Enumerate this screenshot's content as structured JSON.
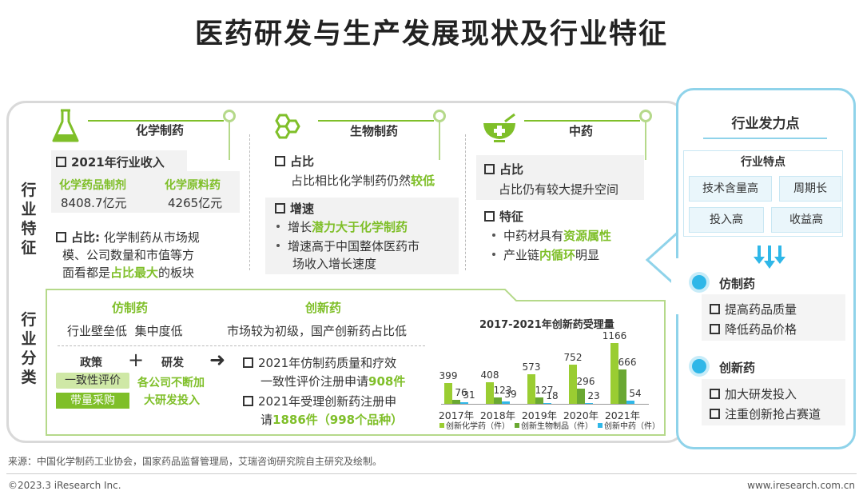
{
  "title": "医药研发与生产发展现状及行业特征",
  "side": {
    "features_label": [
      "行",
      "业",
      "特",
      "征"
    ],
    "categories_label": [
      "行",
      "业",
      "分",
      "类"
    ]
  },
  "chem": {
    "title": "化学制药",
    "income_title": "2021年行业收入",
    "col1_name": "化学药品制剂",
    "col1_value": "8408.7亿元",
    "col2_name": "化学原料药",
    "col2_value": "4265亿元",
    "share_lead": "占比:",
    "share_text_1": "化学制药从市场规",
    "share_text_2": "模、公司数量和市值等方",
    "share_text_3a": "面看都是",
    "share_text_3b": "占比最大",
    "share_text_3c": "的板块"
  },
  "bio": {
    "title": "生物制药",
    "share_head": "占比",
    "share_text_a": "占比相比化学制药仍然",
    "share_text_b": "较低",
    "growth_head": "增速",
    "g1a": "增长",
    "g1b": "潜力大于化学制药",
    "g2a": "增速高于中国整体医药市",
    "g2b": "场收入增长速度"
  },
  "tcm": {
    "title": "中药",
    "share_head": "占比",
    "share_text": "占比仍有较大提升空间",
    "feat_head": "特征",
    "f1a": "中药材具有",
    "f1b": "资源属性",
    "f2a": "产业链",
    "f2b": "内循环",
    "f2c": "明显"
  },
  "cat": {
    "generic_title": "仿制药",
    "generic_text_1": "行业壁垒低",
    "generic_text_2": "集中度低",
    "innov_title": "创新药",
    "innov_text": "市场较为初级，国产创新药占比低",
    "policy": "政策",
    "plus": "+",
    "rd": "研发",
    "pill1": "一致性评价",
    "pill2": "带量采购",
    "rd_text_1": "各公司不断加",
    "rd_text_2": "大研发投入",
    "arrow": "➜",
    "p1a": "2021年仿制药质量和疗效",
    "p1b": "一致性评价注册申请",
    "p1c": "908件",
    "p2a": "2021年受理创新药注册申",
    "p2b": "请",
    "p2c": "1886件（998个品种）"
  },
  "chart_data": {
    "type": "bar",
    "title": "2017-2021年创新药受理量",
    "categories": [
      "2017年",
      "2018年",
      "2019年",
      "2020年",
      "2021年"
    ],
    "series": [
      {
        "name": "创新化学药（件）",
        "color": "#9acd32",
        "values": [
          399,
          408,
          573,
          752,
          1166
        ]
      },
      {
        "name": "创新生物制品（件）",
        "color": "#6aa832",
        "values": [
          76,
          123,
          127,
          296,
          666
        ]
      },
      {
        "name": "创新中药（件）",
        "color": "#2fb7e8",
        "values": [
          31,
          39,
          18,
          23,
          54
        ]
      }
    ],
    "ylim": [
      0,
      1200
    ],
    "legend_position": "bottom"
  },
  "right": {
    "title": "行业发力点",
    "features_title": "行业特点",
    "tags": [
      "技术含量高",
      "周期长",
      "投入高",
      "收益高"
    ],
    "generic_title": "仿制药",
    "generic_items": [
      "提高药品质量",
      "降低药品价格"
    ],
    "innov_title": "创新药",
    "innov_items": [
      "加大研发投入",
      "注重创新抢占赛道"
    ]
  },
  "source": "来源：中国化学制药工业协会，国家药品监督管理局，艾瑞咨询研究院自主研究及绘制。",
  "copyright": "©2023.3 iResearch Inc.",
  "website": "www.iresearch.com.cn",
  "colors": {
    "green": "#7fbf29",
    "blue": "#2fb7e8",
    "grey_border": "#d9d9d9"
  }
}
